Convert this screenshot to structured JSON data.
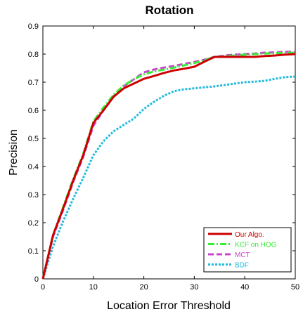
{
  "chart_data": {
    "type": "line",
    "title": "Rotation",
    "xlabel": "Location Error Threshold",
    "ylabel": "Precision",
    "xlim": [
      0,
      50
    ],
    "ylim": [
      0,
      0.9
    ],
    "xticks": [
      0,
      10,
      20,
      30,
      40,
      50
    ],
    "yticks": [
      0,
      0.1,
      0.2,
      0.3,
      0.4,
      0.5,
      0.6,
      0.7,
      0.8,
      0.9
    ],
    "ytick_labels": [
      "0",
      "0.1",
      "0.2",
      "0.3",
      "0.4",
      "0.5",
      "0.6",
      "0.7",
      "0.8",
      "0.9"
    ],
    "grid": false,
    "legend_position": "bottom-right",
    "series": [
      {
        "name": "Our Algo.",
        "color": "#cc0000",
        "style": "solid",
        "x": [
          0,
          2,
          4,
          6,
          8,
          10,
          12,
          14,
          16,
          18,
          20,
          22,
          24,
          26,
          28,
          30,
          32,
          34,
          36,
          38,
          40,
          42,
          44,
          46,
          48,
          50
        ],
        "y": [
          0,
          0.155,
          0.25,
          0.35,
          0.44,
          0.555,
          0.6,
          0.648,
          0.678,
          0.695,
          0.712,
          0.722,
          0.733,
          0.742,
          0.748,
          0.755,
          0.773,
          0.79,
          0.79,
          0.79,
          0.79,
          0.79,
          0.793,
          0.795,
          0.798,
          0.8
        ]
      },
      {
        "name": "KCF on HOG",
        "color": "#33ee33",
        "style": "dashdot",
        "x": [
          0,
          2,
          4,
          6,
          8,
          10,
          12,
          14,
          16,
          18,
          20,
          22,
          24,
          26,
          28,
          30,
          32,
          34,
          36,
          38,
          40,
          42,
          44,
          46,
          48,
          50
        ],
        "y": [
          0,
          0.155,
          0.255,
          0.355,
          0.445,
          0.56,
          0.61,
          0.655,
          0.688,
          0.71,
          0.728,
          0.738,
          0.745,
          0.752,
          0.76,
          0.768,
          0.778,
          0.79,
          0.792,
          0.795,
          0.798,
          0.8,
          0.802,
          0.803,
          0.805,
          0.805
        ]
      },
      {
        "name": "MCT",
        "color": "#cc44cc",
        "style": "dashed",
        "x": [
          0,
          2,
          4,
          6,
          8,
          10,
          12,
          14,
          16,
          18,
          20,
          22,
          24,
          26,
          28,
          30,
          32,
          34,
          36,
          38,
          40,
          42,
          44,
          46,
          48,
          50
        ],
        "y": [
          0,
          0.15,
          0.245,
          0.345,
          0.435,
          0.545,
          0.6,
          0.65,
          0.685,
          0.71,
          0.735,
          0.745,
          0.752,
          0.758,
          0.765,
          0.772,
          0.78,
          0.79,
          0.795,
          0.798,
          0.8,
          0.802,
          0.805,
          0.806,
          0.808,
          0.808
        ]
      },
      {
        "name": "BDF",
        "color": "#22bbdd",
        "style": "dotted",
        "x": [
          0,
          2,
          4,
          6,
          8,
          10,
          12,
          14,
          16,
          18,
          20,
          22,
          24,
          26,
          28,
          30,
          32,
          34,
          36,
          38,
          40,
          42,
          44,
          46,
          48,
          50
        ],
        "y": [
          0,
          0.115,
          0.205,
          0.285,
          0.36,
          0.44,
          0.49,
          0.525,
          0.548,
          0.57,
          0.605,
          0.63,
          0.652,
          0.668,
          0.675,
          0.678,
          0.682,
          0.685,
          0.69,
          0.695,
          0.7,
          0.702,
          0.705,
          0.712,
          0.718,
          0.72
        ]
      }
    ]
  }
}
